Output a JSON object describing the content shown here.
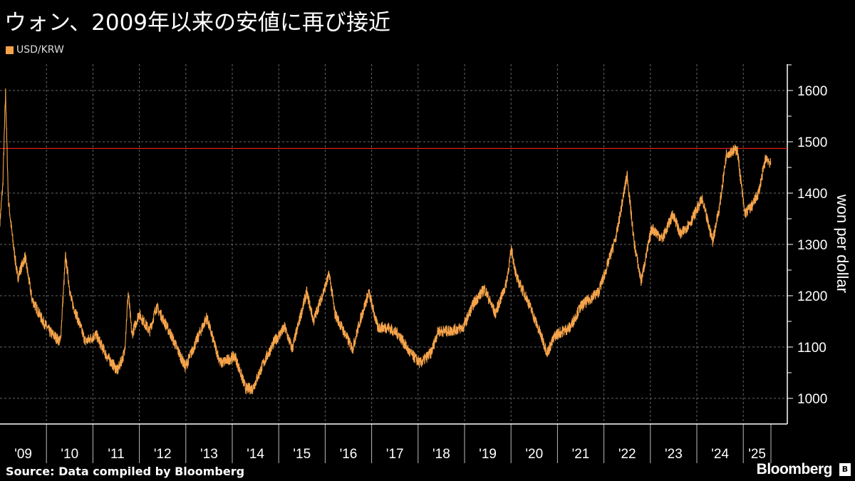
{
  "title": "ウォン、2009年以来の安値に再び接近",
  "source": "Source: Data compiled by Bloomberg",
  "logo": "Bloomberg",
  "colors": {
    "series": "#f5a34a",
    "reference_line": "#e0201b",
    "background": "#000000"
  },
  "chart_data": {
    "type": "line",
    "title": "ウォン、2009年以来の安値に再び接近",
    "ylabel": "won per dollar",
    "xlabel": "",
    "ylim": [
      950,
      1650
    ],
    "xlim": [
      2009.0,
      2025.7
    ],
    "yticks": [
      1000,
      1100,
      1200,
      1300,
      1400,
      1500,
      1600
    ],
    "ytick_labels": [
      "1000",
      "1100",
      "1200",
      "1300",
      "1400",
      "1500",
      "1600"
    ],
    "xtick_labels": [
      "'09",
      "'10",
      "'11",
      "'12",
      "'13",
      "'14",
      "'15",
      "'16",
      "'17",
      "'18",
      "'19",
      "'20",
      "'21",
      "'22",
      "'23",
      "'24",
      "'25"
    ],
    "grid": true,
    "legend": {
      "position": "top-left",
      "entries": [
        "USD/KRW"
      ]
    },
    "reference_line": {
      "value": 1487
    },
    "series": [
      {
        "name": "USD/KRW",
        "x": [
          2009.0,
          2009.06,
          2009.12,
          2009.18,
          2009.28,
          2009.38,
          2009.54,
          2009.69,
          2009.92,
          2010.07,
          2010.3,
          2010.41,
          2010.53,
          2010.69,
          2010.84,
          2011.07,
          2011.3,
          2011.53,
          2011.68,
          2011.76,
          2011.84,
          2011.99,
          2012.22,
          2012.37,
          2012.68,
          2012.99,
          2013.22,
          2013.45,
          2013.6,
          2013.75,
          2014.06,
          2014.29,
          2014.44,
          2014.67,
          2014.9,
          2015.13,
          2015.29,
          2015.6,
          2015.75,
          2016.09,
          2016.21,
          2016.59,
          2016.75,
          2016.94,
          2017.13,
          2017.36,
          2017.59,
          2017.82,
          2018.05,
          2018.28,
          2018.43,
          2018.66,
          2018.97,
          2019.2,
          2019.43,
          2019.66,
          2019.89,
          2020.01,
          2020.12,
          2020.35,
          2020.58,
          2020.78,
          2020.96,
          2021.27,
          2021.5,
          2021.88,
          2022.04,
          2022.27,
          2022.5,
          2022.65,
          2022.8,
          2023.03,
          2023.26,
          2023.49,
          2023.65,
          2023.88,
          2024.11,
          2024.34,
          2024.49,
          2024.64,
          2024.87,
          2025.03,
          2025.18,
          2025.33,
          2025.49,
          2025.59
        ],
        "values": [
          1346,
          1415,
          1596,
          1387,
          1304,
          1235,
          1276,
          1193,
          1151,
          1130,
          1110,
          1276,
          1193,
          1151,
          1110,
          1124,
          1082,
          1054,
          1089,
          1207,
          1124,
          1165,
          1131,
          1179,
          1124,
          1061,
          1110,
          1158,
          1110,
          1068,
          1082,
          1019,
          1019,
          1068,
          1110,
          1138,
          1096,
          1207,
          1151,
          1242,
          1165,
          1096,
          1151,
          1207,
          1138,
          1138,
          1124,
          1089,
          1068,
          1089,
          1131,
          1131,
          1138,
          1186,
          1214,
          1165,
          1221,
          1290,
          1235,
          1193,
          1138,
          1089,
          1124,
          1138,
          1179,
          1207,
          1249,
          1318,
          1436,
          1304,
          1228,
          1332,
          1311,
          1360,
          1318,
          1346,
          1388,
          1307,
          1374,
          1478,
          1485,
          1360,
          1374,
          1401,
          1471,
          1457
        ]
      }
    ]
  }
}
